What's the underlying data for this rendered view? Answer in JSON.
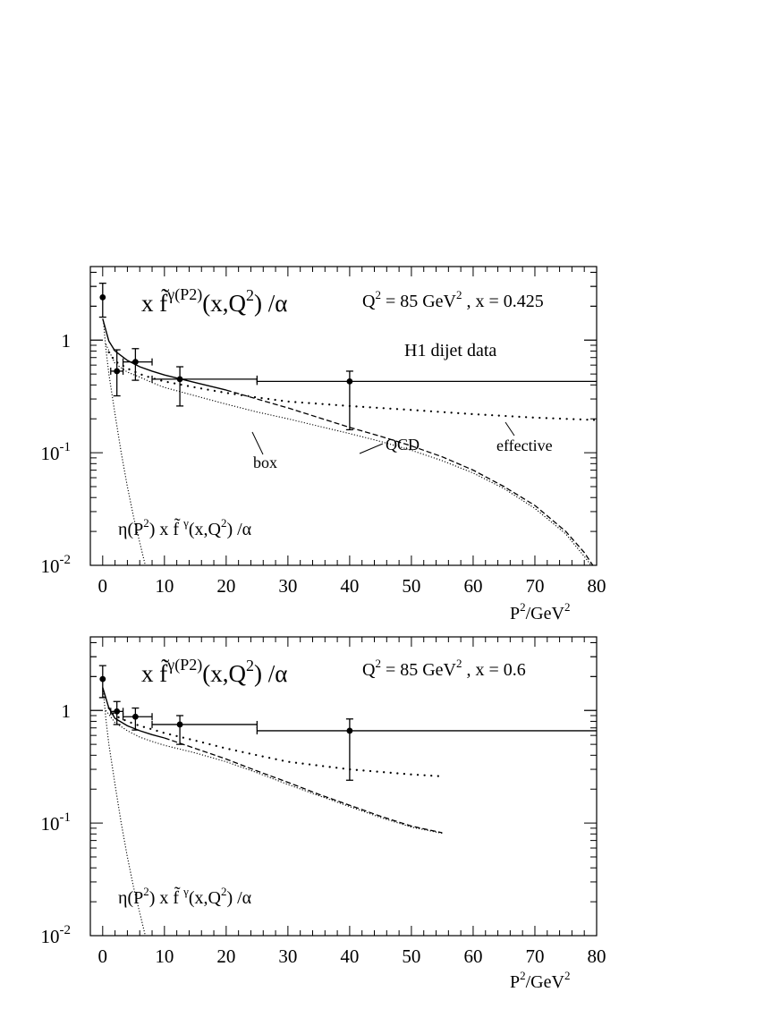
{
  "chart_data": [
    {
      "type": "scatter",
      "title": "x f̃ γ(P²)(x,Q²) /α",
      "title_parts": {
        "base": "x f̃",
        "sup": "γ(P2)",
        "rest": "(x,Q",
        "rest_sup": "2",
        "tail": ") /α"
      },
      "annotation": {
        "q_label": "Q",
        "q_sup": "2",
        "q_rest": " = 85 GeV",
        "q_rest_sup": "2",
        "x_part": " , x = 0.425"
      },
      "data_label": "H1 dijet data",
      "curve_labels": {
        "box": "box",
        "qcd": "QCD",
        "effective": "effective"
      },
      "eta_label": {
        "p1": "η(P",
        "s1": "2",
        "p2": ") x f̃ ",
        "s2": "γ",
        "p3": "(x,Q",
        "s3": "2",
        "p4": ") /α"
      },
      "xlabel": {
        "base": "P",
        "sup1": "2",
        "mid": "/GeV",
        "sup2": "2"
      },
      "xlim": [
        -2,
        80
      ],
      "ylim": [
        0.01,
        4.5
      ],
      "yscale": "log",
      "x_ticks": [
        "0",
        "10",
        "20",
        "30",
        "40",
        "50",
        "60",
        "70",
        "80"
      ],
      "y_ticks": [
        {
          "value": 1,
          "base": "1",
          "exp": ""
        },
        {
          "value": 0.1,
          "base": "10",
          "exp": "-1"
        },
        {
          "value": 0.01,
          "base": "10",
          "exp": "-2"
        }
      ],
      "points": [
        {
          "x": 0,
          "y": 2.4,
          "yerr_lo": 1.6,
          "yerr_hi": 3.2,
          "xerr": [
            0,
            0
          ]
        },
        {
          "x": 2.3,
          "y": 0.53,
          "yerr_lo": 0.32,
          "yerr_hi": 0.82,
          "xerr": [
            1.3,
            3.3
          ]
        },
        {
          "x": 5.3,
          "y": 0.64,
          "yerr_lo": 0.44,
          "yerr_hi": 0.84,
          "xerr": [
            3.3,
            8
          ]
        },
        {
          "x": 12.5,
          "y": 0.45,
          "yerr_lo": 0.26,
          "yerr_hi": 0.58,
          "xerr": [
            8,
            25
          ]
        },
        {
          "x": 40,
          "y": 0.43,
          "yerr_lo": 0.16,
          "yerr_hi": 0.53,
          "xerr": [
            25,
            80
          ]
        }
      ],
      "series": [
        {
          "key": "solid",
          "style": "solid",
          "x": [
            0,
            1,
            2,
            4,
            6,
            8,
            10,
            15,
            20
          ],
          "y": [
            1.55,
            0.98,
            0.8,
            0.66,
            0.58,
            0.53,
            0.49,
            0.42,
            0.36
          ]
        },
        {
          "key": "qcd",
          "style": "dashed",
          "x": [
            20,
            25,
            30,
            35,
            40,
            45,
            50,
            55,
            60,
            65,
            70,
            75,
            78,
            79.5
          ],
          "y": [
            0.36,
            0.3,
            0.25,
            0.205,
            0.168,
            0.14,
            0.115,
            0.092,
            0.07,
            0.05,
            0.034,
            0.02,
            0.013,
            0.0098
          ]
        },
        {
          "key": "box",
          "style": "fine-dotted",
          "x": [
            0.5,
            2,
            4,
            6,
            8,
            10,
            15,
            20,
            25,
            30,
            35,
            40,
            45,
            50,
            55,
            60,
            65,
            70,
            75,
            78,
            79.5
          ],
          "y": [
            0.92,
            0.62,
            0.52,
            0.47,
            0.42,
            0.38,
            0.32,
            0.27,
            0.23,
            0.2,
            0.172,
            0.148,
            0.126,
            0.105,
            0.085,
            0.066,
            0.048,
            0.032,
            0.019,
            0.012,
            0.0094
          ]
        },
        {
          "key": "effective",
          "style": "dotted",
          "x": [
            1,
            2,
            4,
            6,
            8,
            10,
            15,
            20,
            25,
            30,
            40,
            50,
            60,
            70,
            80
          ],
          "y": [
            0.78,
            0.65,
            0.56,
            0.5,
            0.46,
            0.43,
            0.38,
            0.34,
            0.31,
            0.285,
            0.26,
            0.24,
            0.22,
            0.205,
            0.195
          ]
        },
        {
          "key": "eta",
          "style": "fine-dotted",
          "x": [
            0.1,
            0.5,
            1,
            1.5,
            2,
            3,
            4,
            5,
            6,
            7
          ],
          "y": [
            1.5,
            0.85,
            0.5,
            0.33,
            0.22,
            0.1,
            0.05,
            0.027,
            0.016,
            0.0095
          ]
        }
      ]
    },
    {
      "type": "scatter",
      "title": "x f̃ γ(P²)(x,Q²) /α",
      "title_parts": {
        "base": "x f̃",
        "sup": "γ(P2)",
        "rest": "(x,Q",
        "rest_sup": "2",
        "tail": ") /α"
      },
      "annotation": {
        "q_label": "Q",
        "q_sup": "2",
        "q_rest": " = 85 GeV",
        "q_rest_sup": "2",
        "x_part": " , x = 0.6"
      },
      "eta_label": {
        "p1": "η(P",
        "s1": "2",
        "p2": ") x f̃ ",
        "s2": "γ",
        "p3": "(x,Q",
        "s3": "2",
        "p4": ") /α"
      },
      "xlabel": {
        "base": "P",
        "sup1": "2",
        "mid": "/GeV",
        "sup2": "2"
      },
      "xlim": [
        -2,
        80
      ],
      "ylim": [
        0.01,
        4.5
      ],
      "yscale": "log",
      "x_ticks": [
        "0",
        "10",
        "20",
        "30",
        "40",
        "50",
        "60",
        "70",
        "80"
      ],
      "y_ticks": [
        {
          "value": 1,
          "base": "1",
          "exp": ""
        },
        {
          "value": 0.1,
          "base": "10",
          "exp": "-1"
        },
        {
          "value": 0.01,
          "base": "10",
          "exp": "-2"
        }
      ],
      "points": [
        {
          "x": 0,
          "y": 1.9,
          "yerr_lo": 1.3,
          "yerr_hi": 2.5,
          "xerr": [
            0,
            0
          ]
        },
        {
          "x": 2.3,
          "y": 0.98,
          "yerr_lo": 0.75,
          "yerr_hi": 1.2,
          "xerr": [
            1.3,
            3.3
          ]
        },
        {
          "x": 5.3,
          "y": 0.88,
          "yerr_lo": 0.67,
          "yerr_hi": 1.05,
          "xerr": [
            3.3,
            8
          ]
        },
        {
          "x": 12.5,
          "y": 0.75,
          "yerr_lo": 0.5,
          "yerr_hi": 0.9,
          "xerr": [
            8,
            25
          ]
        },
        {
          "x": 40,
          "y": 0.66,
          "yerr_lo": 0.24,
          "yerr_hi": 0.84,
          "xerr": [
            25,
            80
          ]
        }
      ],
      "series": [
        {
          "key": "solid",
          "style": "solid",
          "x": [
            0,
            1,
            2,
            4,
            6,
            8,
            10
          ],
          "y": [
            1.6,
            1.05,
            0.85,
            0.73,
            0.66,
            0.61,
            0.57
          ]
        },
        {
          "key": "qcd",
          "style": "dashed",
          "x": [
            10,
            15,
            20,
            25,
            30,
            35,
            40,
            45,
            50,
            55
          ],
          "y": [
            0.57,
            0.46,
            0.37,
            0.29,
            0.23,
            0.18,
            0.144,
            0.115,
            0.094,
            0.082
          ]
        },
        {
          "key": "box",
          "style": "fine-dotted",
          "x": [
            0.5,
            2,
            4,
            6,
            8,
            10,
            15,
            20,
            25,
            30,
            35,
            40,
            45,
            50,
            55
          ],
          "y": [
            1.0,
            0.78,
            0.66,
            0.58,
            0.53,
            0.49,
            0.42,
            0.35,
            0.28,
            0.22,
            0.175,
            0.14,
            0.112,
            0.092,
            0.081
          ]
        },
        {
          "key": "effective",
          "style": "dotted",
          "x": [
            1,
            2,
            4,
            6,
            8,
            10,
            15,
            20,
            25,
            30,
            40,
            50,
            55
          ],
          "y": [
            1.05,
            0.9,
            0.8,
            0.73,
            0.68,
            0.63,
            0.54,
            0.46,
            0.4,
            0.35,
            0.3,
            0.27,
            0.26
          ]
        },
        {
          "key": "eta",
          "style": "fine-dotted",
          "x": [
            0.1,
            0.5,
            1,
            1.5,
            2,
            3,
            4,
            5,
            6,
            7
          ],
          "y": [
            1.5,
            0.85,
            0.5,
            0.33,
            0.22,
            0.1,
            0.05,
            0.027,
            0.016,
            0.0095
          ]
        }
      ]
    }
  ]
}
